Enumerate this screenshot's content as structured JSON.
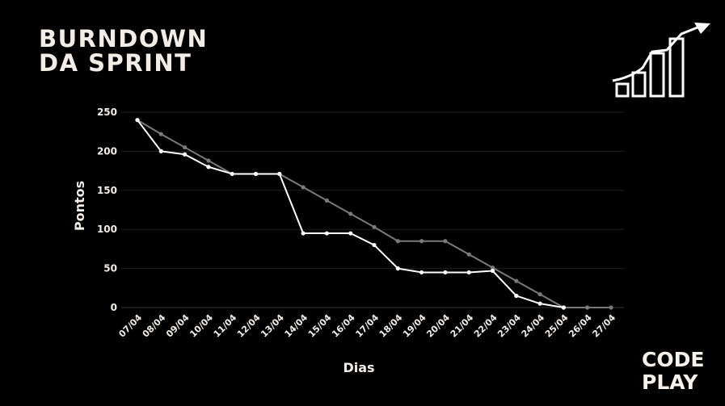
{
  "header": {
    "title_line1": "BURNDOWN",
    "title_line2": "DA SPRINT"
  },
  "logo": {
    "line1": "CODE",
    "line2": "PLAY",
    "accent_colors": [
      "#f6c200",
      "#e8344a"
    ]
  },
  "icons": [
    "growth-chart-icon"
  ],
  "colors": {
    "background": "#000000",
    "ideal_line": "#7a7a7a",
    "actual_line": "#ffffff",
    "grid": "#1e1e1e",
    "text": "#f2ede6"
  },
  "chart_data": {
    "type": "line",
    "title": "BURNDOWN DA SPRINT",
    "xlabel": "Dias",
    "ylabel": "Pontos",
    "ylim": [
      0,
      250
    ],
    "yticks": [
      0,
      50,
      100,
      150,
      200,
      250
    ],
    "grid": true,
    "categories": [
      "07/04",
      "08/04",
      "09/04",
      "10/04",
      "11/04",
      "12/04",
      "13/04",
      "14/04",
      "15/04",
      "16/04",
      "17/04",
      "18/04",
      "19/04",
      "20/04",
      "21/04",
      "22/04",
      "23/04",
      "24/04",
      "25/04",
      "26/04",
      "27/04"
    ],
    "series": [
      {
        "values": [
          240,
          222,
          205,
          188,
          171,
          171,
          171,
          154,
          137,
          120,
          103,
          85,
          85,
          85,
          68,
          51,
          34,
          17,
          0,
          0,
          0
        ]
      },
      {
        "values": [
          240,
          200,
          196,
          180,
          171,
          171,
          171,
          95,
          95,
          95,
          80,
          50,
          45,
          45,
          45,
          47,
          15,
          5,
          0,
          null,
          null
        ]
      }
    ]
  }
}
